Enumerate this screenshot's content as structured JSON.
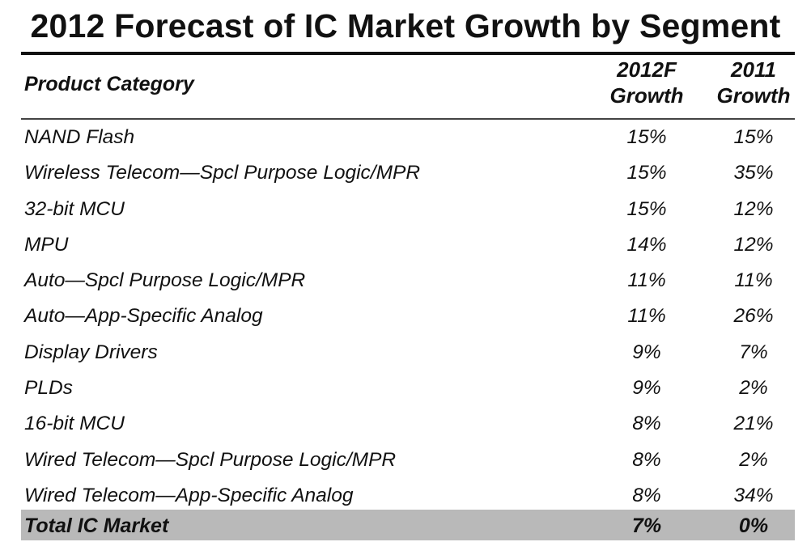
{
  "chart_data": {
    "type": "table",
    "title": "2012 Forecast of IC Market Growth by Segment",
    "columns": [
      "Product Category",
      "2012F Growth",
      "2011 Growth"
    ],
    "header": {
      "category": "Product Category",
      "col1_line1": "2012F",
      "col1_line2": "Growth",
      "col2_line1": "2011",
      "col2_line2": "Growth"
    },
    "rows": [
      {
        "category": "NAND Flash",
        "growth_2012f": "15%",
        "growth_2011": "15%"
      },
      {
        "category": "Wireless Telecom—Spcl Purpose Logic/MPR",
        "growth_2012f": "15%",
        "growth_2011": "35%"
      },
      {
        "category": "32-bit MCU",
        "growth_2012f": "15%",
        "growth_2011": "12%"
      },
      {
        "category": "MPU",
        "growth_2012f": "14%",
        "growth_2011": "12%"
      },
      {
        "category": "Auto—Spcl Purpose Logic/MPR",
        "growth_2012f": "11%",
        "growth_2011": "11%"
      },
      {
        "category": "Auto—App-Specific Analog",
        "growth_2012f": "11%",
        "growth_2011": "26%"
      },
      {
        "category": "Display Drivers",
        "growth_2012f": "9%",
        "growth_2011": "7%"
      },
      {
        "category": "PLDs",
        "growth_2012f": "9%",
        "growth_2011": "2%"
      },
      {
        "category": "16-bit MCU",
        "growth_2012f": "8%",
        "growth_2011": "21%"
      },
      {
        "category": "Wired Telecom—Spcl Purpose Logic/MPR",
        "growth_2012f": "8%",
        "growth_2011": "2%"
      },
      {
        "category": "Wired Telecom—App-Specific Analog",
        "growth_2012f": "8%",
        "growth_2011": "34%"
      }
    ],
    "total": {
      "category": "Total IC Market",
      "growth_2012f": "7%",
      "growth_2011": "0%"
    },
    "total_row_color": "#b9b9b9"
  }
}
